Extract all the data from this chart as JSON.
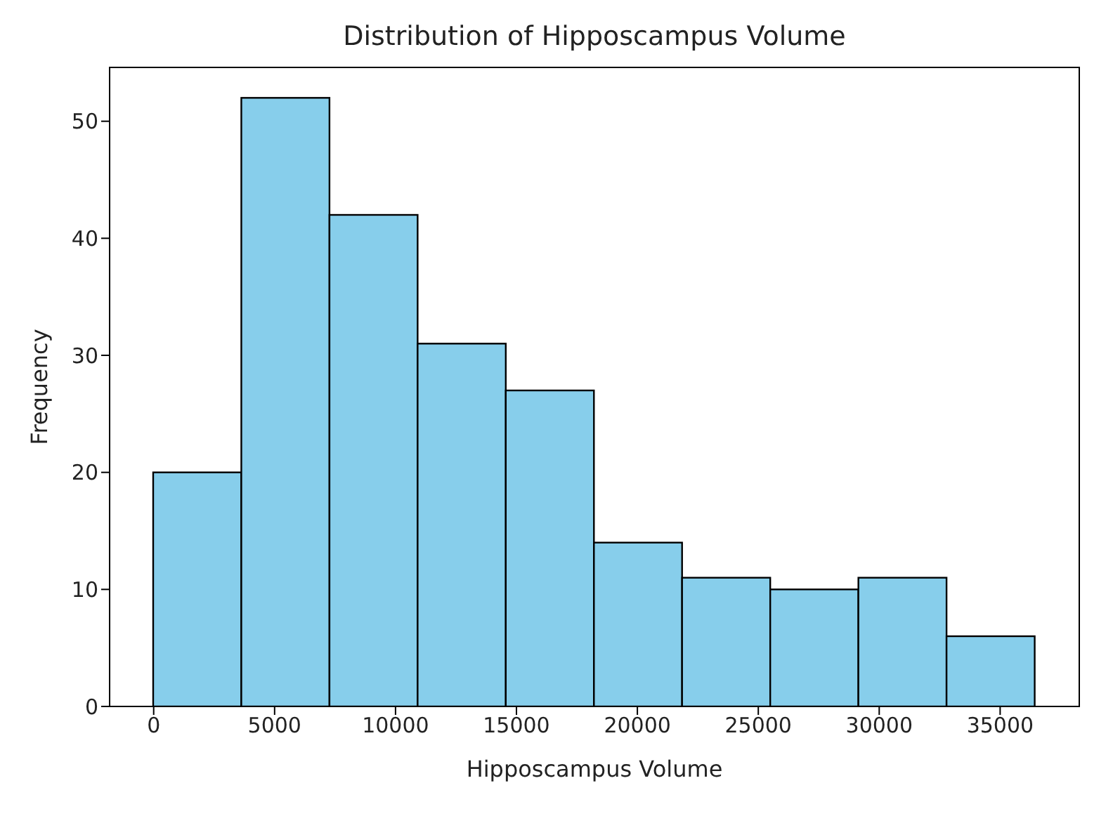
{
  "chart_data": {
    "type": "histogram",
    "title": "Distribution of Hipposcampus Volume",
    "xlabel": "Hipposcampus Volume",
    "ylabel": "Frequency",
    "bins": [
      0,
      3645,
      7290,
      10935,
      14580,
      18225,
      21870,
      25515,
      29160,
      32805,
      36450
    ],
    "values": [
      20,
      52,
      42,
      31,
      27,
      14,
      11,
      10,
      11,
      6
    ],
    "color": "#87ceeb",
    "xlim": [
      -1822,
      38272
    ],
    "xticks": [
      0,
      5000,
      10000,
      15000,
      20000,
      25000,
      30000,
      35000
    ],
    "ylim": [
      0,
      54.6
    ],
    "yticks": [
      0,
      10,
      20,
      30,
      40,
      50
    ],
    "grid": false
  }
}
